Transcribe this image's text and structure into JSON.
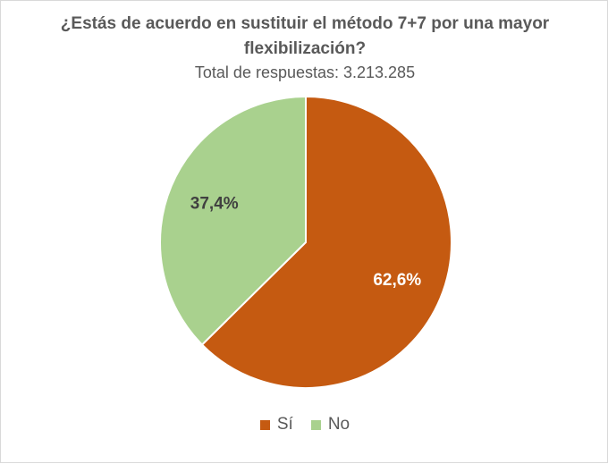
{
  "chart_data": {
    "type": "pie",
    "title": "¿Estás de acuerdo en sustituir el método 7+7 por una mayor flexibilización?",
    "subtitle": "Total de respuestas: 3.213.285",
    "slices": [
      {
        "label": "Sí",
        "value": 62.6,
        "display": "62,6%",
        "color": "#c55a11"
      },
      {
        "label": "No",
        "value": 37.4,
        "display": "37,4%",
        "color": "#a9d18e"
      }
    ],
    "legend_position": "bottom"
  }
}
